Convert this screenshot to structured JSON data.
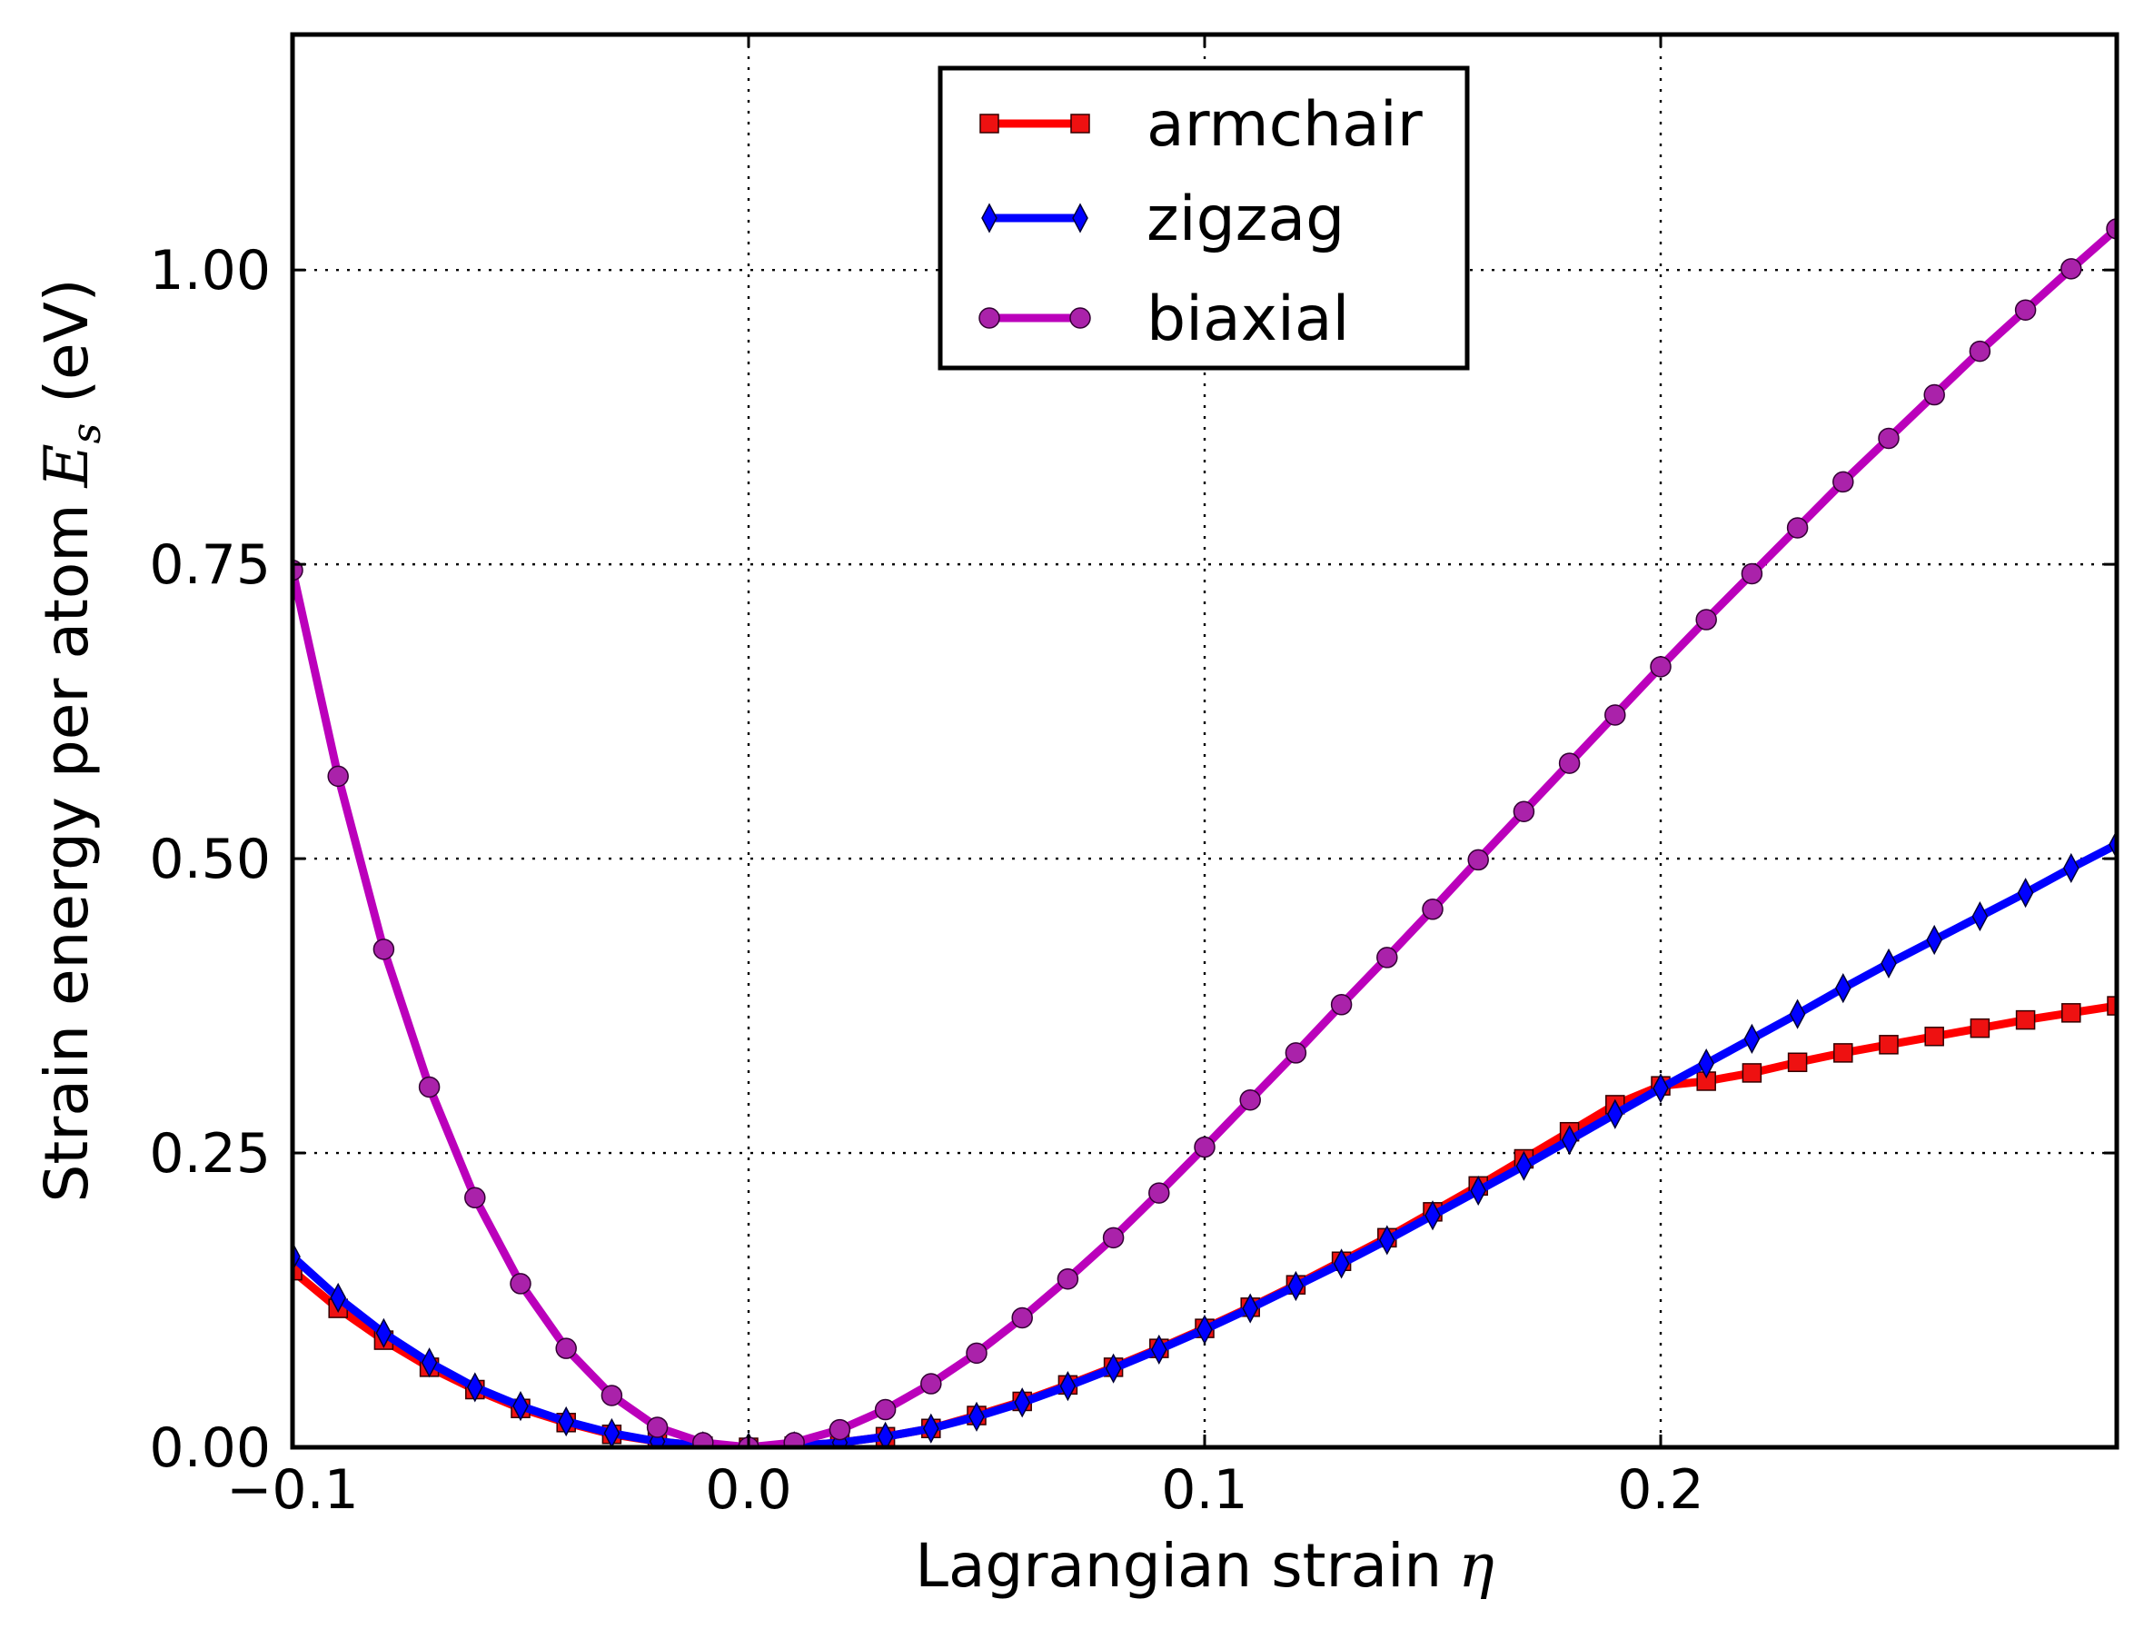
{
  "chart_data": {
    "type": "line",
    "title": "",
    "xlabel": "Lagrangian strain",
    "xlabel_symbol": "η",
    "ylabel": "Strain energy per atom",
    "ylabel_symbol": "E",
    "ylabel_subscript": "s",
    "ylabel_unit": "(eV)",
    "xlim": [
      -0.1,
      0.3
    ],
    "ylim": [
      0,
      1.2
    ],
    "grid": true,
    "legend_position": "top-center",
    "x_ticks": [
      -0.1,
      0.0,
      0.1,
      0.2
    ],
    "x_tick_labels": [
      "−0.1",
      "0.0",
      "0.1",
      "0.2"
    ],
    "y_ticks": [
      0,
      0.25,
      0.5,
      0.75,
      1.0
    ],
    "y_tick_labels": [
      "0.00",
      "0.25",
      "0.50",
      "0.75",
      "1.00"
    ],
    "x": [
      -0.1,
      -0.09,
      -0.08,
      -0.07,
      -0.06,
      -0.05,
      -0.04,
      -0.03,
      -0.02,
      -0.01,
      0.0,
      0.01,
      0.02,
      0.03,
      0.04,
      0.05,
      0.06,
      0.07,
      0.08,
      0.09,
      0.1,
      0.11,
      0.12,
      0.13,
      0.14,
      0.15,
      0.16,
      0.17,
      0.18,
      0.19,
      0.2,
      0.21,
      0.22,
      0.23,
      0.24,
      0.25,
      0.26,
      0.27,
      0.28,
      0.29,
      0.3
    ],
    "series": [
      {
        "name": "armchair",
        "color": "#ff0000",
        "marker": "square",
        "marker_color": "#ee1111",
        "values": [
          0.15,
          0.118,
          0.091,
          0.068,
          0.049,
          0.033,
          0.021,
          0.011,
          0.005,
          0.001,
          0.0,
          0.001,
          0.004,
          0.009,
          0.016,
          0.027,
          0.039,
          0.053,
          0.068,
          0.084,
          0.101,
          0.119,
          0.138,
          0.158,
          0.178,
          0.2,
          0.222,
          0.245,
          0.268,
          0.291,
          0.307,
          0.311,
          0.318,
          0.327,
          0.335,
          0.342,
          0.349,
          0.356,
          0.363,
          0.369,
          0.375
        ]
      },
      {
        "name": "zigzag",
        "color": "#0000ff",
        "marker": "thin_diamond",
        "marker_color": "#0000ff",
        "values": [
          0.162,
          0.127,
          0.097,
          0.072,
          0.051,
          0.035,
          0.022,
          0.012,
          0.005,
          0.001,
          0.0,
          0.001,
          0.004,
          0.009,
          0.016,
          0.026,
          0.038,
          0.052,
          0.067,
          0.083,
          0.1,
          0.118,
          0.137,
          0.156,
          0.176,
          0.197,
          0.218,
          0.239,
          0.261,
          0.283,
          0.305,
          0.326,
          0.347,
          0.368,
          0.39,
          0.411,
          0.431,
          0.451,
          0.471,
          0.492,
          0.512
        ]
      },
      {
        "name": "biaxial",
        "color": "#bb00bb",
        "marker": "circle",
        "marker_color": "#aa22aa",
        "values": [
          0.745,
          0.57,
          0.423,
          0.306,
          0.212,
          0.139,
          0.084,
          0.044,
          0.017,
          0.004,
          0.0,
          0.004,
          0.015,
          0.032,
          0.054,
          0.08,
          0.11,
          0.143,
          0.178,
          0.216,
          0.255,
          0.295,
          0.335,
          0.376,
          0.416,
          0.457,
          0.499,
          0.54,
          0.581,
          0.622,
          0.663,
          0.703,
          0.742,
          0.781,
          0.82,
          0.857,
          0.894,
          0.931,
          0.966,
          1.001,
          1.035
        ]
      }
    ]
  }
}
